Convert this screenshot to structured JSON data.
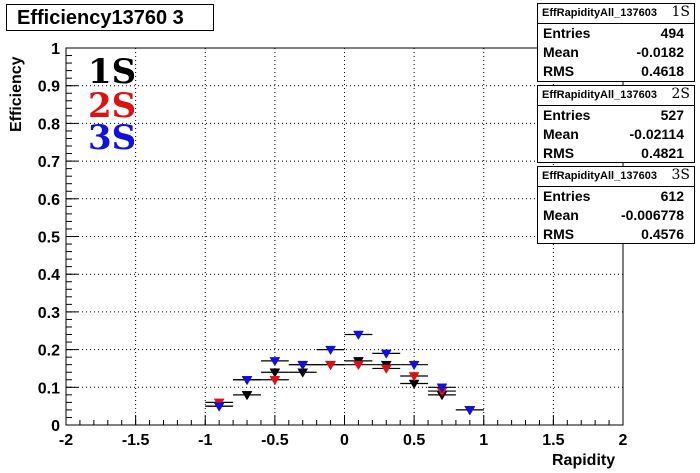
{
  "title": "Efficiency13760 3",
  "chart_data": {
    "type": "scatter",
    "xlabel": "Rapidity",
    "ylabel": "Efficiency",
    "xlim": [
      -2,
      2
    ],
    "ylim": [
      0,
      1
    ],
    "x_ticks": [
      "-2",
      "-1.5",
      "-1",
      "-0.5",
      "0",
      "0.5",
      "1",
      "1.5",
      "2"
    ],
    "y_ticks": [
      "0",
      "0.1",
      "0.2",
      "0.3",
      "0.4",
      "0.5",
      "0.6",
      "0.7",
      "0.8",
      "0.9",
      "1"
    ],
    "grid": true,
    "x_bin_half_width": 0.1,
    "x": [
      -0.9,
      -0.7,
      -0.5,
      -0.3,
      -0.1,
      0.1,
      0.3,
      0.5,
      0.7,
      0.9
    ],
    "series": [
      {
        "name": "1S",
        "color": "#000000",
        "values": [
          0.05,
          0.08,
          0.14,
          0.14,
          0.16,
          0.17,
          0.16,
          0.11,
          0.08,
          0.04
        ]
      },
      {
        "name": "2S",
        "color": "#dd1111",
        "values": [
          0.06,
          0.12,
          0.12,
          0.16,
          0.16,
          0.16,
          0.15,
          0.13,
          0.09,
          0.04
        ]
      },
      {
        "name": "3S",
        "color": "#1111dd",
        "values": [
          0.05,
          0.12,
          0.17,
          0.16,
          0.2,
          0.24,
          0.19,
          0.16,
          0.1,
          0.04
        ]
      }
    ]
  },
  "stats_boxes": [
    {
      "name": "EffRapidityAll_137603",
      "tag": "1S",
      "entries_label": "Entries",
      "entries": "494",
      "mean_label": "Mean",
      "mean": "-0.0182",
      "rms_label": "RMS",
      "rms": "0.4618"
    },
    {
      "name": "EffRapidityAll_137603",
      "tag": "2S",
      "entries_label": "Entries",
      "entries": "527",
      "mean_label": "Mean",
      "mean": "-0.02114",
      "rms_label": "RMS",
      "rms": "0.4821"
    },
    {
      "name": "EffRapidityAll_137603",
      "tag": "3S",
      "entries_label": "Entries",
      "entries": "612",
      "mean_label": "Mean",
      "mean": "-0.006778",
      "rms_label": "RMS",
      "rms": "0.4576"
    }
  ],
  "legend": {
    "s1": "1S",
    "s2": "2S",
    "s3": "3S",
    "c1": "#000000",
    "c2": "#dd1111",
    "c3": "#1111dd"
  }
}
